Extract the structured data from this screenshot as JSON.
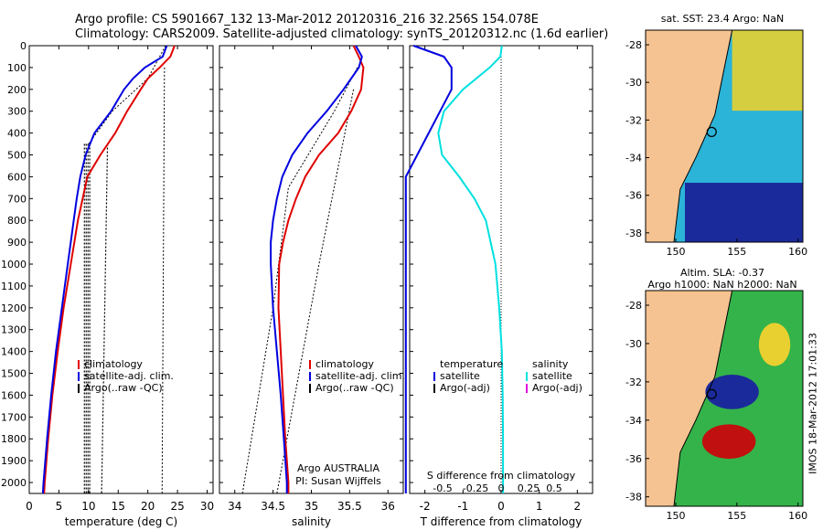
{
  "titles": {
    "line1": "Argo profile: CS 5901667_132 13-Mar-2012 20120316_216 32.256S 154.078E",
    "line2": "Climatology: CARS2009. Satellite-adjusted climatology: synTS_20120312.nc (1.6d earlier)"
  },
  "side_label": "IMOS 18-Mar-2012 17:01:33",
  "maps": {
    "sst_title": "sat. SST: 23.4  Argo: NaN",
    "sla_title1": "Altim. SLA: -0.37",
    "sla_title2": "Argo h1000: NaN h2000: NaN",
    "lat_ticks": [
      "-28",
      "-30",
      "-32",
      "-34",
      "-36",
      "-38"
    ],
    "lon_ticks": [
      "150",
      "155",
      "160"
    ],
    "colors": {
      "land": "#f5c391",
      "sea_dark": "#1b2a9a",
      "sea_mid": "#2bb3d8",
      "warm": "#e8d030",
      "hot": "#c01010"
    }
  },
  "depth_ticks": [
    "0",
    "100",
    "200",
    "300",
    "400",
    "500",
    "600",
    "700",
    "800",
    "900",
    "1000",
    "1100",
    "1200",
    "1300",
    "1400",
    "1500",
    "1600",
    "1700",
    "1800",
    "1900",
    "2000"
  ],
  "legend_temp": {
    "items": [
      "climatology",
      "satellite-adj. clim.",
      "Argo(..raw -QC)"
    ],
    "colors": [
      "#e00000",
      "#0000e0",
      "#000000"
    ]
  },
  "legend_sal": {
    "items": [
      "climatology",
      "satellite-adj. clim.",
      "Argo(..raw -QC)"
    ],
    "colors": [
      "#e00000",
      "#0000e0",
      "#000000"
    ]
  },
  "legend_diff": {
    "temp_header": "temperature",
    "sal_header": "salinity",
    "temp_items": [
      "satellite",
      "Argo(-adj)"
    ],
    "sal_items": [
      "satellite",
      "Argo(-adj)"
    ],
    "temp_colors": [
      "#0000e0",
      "#000000"
    ],
    "sal_colors": [
      "#00e0e0",
      "#e000e0"
    ]
  },
  "argo_info": {
    "line1": "Argo AUSTRALIA",
    "line2": "PI: Susan Wijffels"
  },
  "chart_data": [
    {
      "type": "line",
      "name": "temperature",
      "xlabel": "temperature (deg C)",
      "xlim": [
        0,
        31
      ],
      "ylim": [
        2050,
        0
      ],
      "xticks": [
        "0",
        "5",
        "10",
        "15",
        "20",
        "25",
        "30"
      ],
      "depth": [
        0,
        50,
        100,
        150,
        200,
        300,
        400,
        500,
        600,
        700,
        800,
        900,
        1000,
        1200,
        1400,
        1600,
        1800,
        2000,
        2050
      ],
      "series": [
        {
          "name": "climatology",
          "values": [
            24.5,
            23.8,
            22,
            20,
            18.8,
            16.5,
            14.5,
            12,
            9.8,
            9,
            8.2,
            7.6,
            7,
            5.8,
            4.8,
            3.9,
            3.2,
            2.6,
            2.5
          ]
        },
        {
          "name": "satellite-adj. clim.",
          "values": [
            23.2,
            22.5,
            19.5,
            17.5,
            16,
            13.8,
            11,
            9.5,
            8.6,
            8,
            7.5,
            7,
            6.5,
            5.5,
            4.5,
            3.7,
            3,
            2.4,
            2.3
          ]
        }
      ]
    },
    {
      "type": "line",
      "name": "salinity",
      "xlabel": "salinity",
      "xlim": [
        33.8,
        36.2
      ],
      "ylim": [
        2050,
        0
      ],
      "xticks": [
        "34",
        "34.5",
        "35",
        "35.5",
        "36"
      ],
      "depth": [
        0,
        50,
        100,
        200,
        300,
        400,
        500,
        600,
        700,
        800,
        900,
        1000,
        1200,
        1400,
        1600,
        1800,
        2000,
        2050
      ],
      "series": [
        {
          "name": "climatology",
          "values": [
            35.55,
            35.62,
            35.68,
            35.65,
            35.52,
            35.35,
            35.1,
            34.92,
            34.8,
            34.7,
            34.63,
            34.58,
            34.57,
            34.6,
            34.63,
            34.66,
            34.7,
            34.7
          ]
        },
        {
          "name": "satellite-adj. clim.",
          "values": [
            35.58,
            35.66,
            35.62,
            35.42,
            35.2,
            34.95,
            34.75,
            34.62,
            34.55,
            34.5,
            34.47,
            34.47,
            34.5,
            34.55,
            34.6,
            34.64,
            34.68,
            34.68
          ]
        }
      ]
    },
    {
      "type": "line",
      "name": "difference",
      "xlabel": "T difference from climatology",
      "xlabel_top": "S difference from climatology",
      "xlim": [
        -2.4,
        2.4
      ],
      "ylim": [
        2050,
        0
      ],
      "xticks": [
        "-2",
        "-1",
        "0",
        "1",
        "2"
      ],
      "xticks_sal": [
        "-0.5",
        "-0.25",
        "0",
        "0.25",
        "0.5"
      ],
      "depth": [
        0,
        50,
        100,
        200,
        300,
        400,
        500,
        600,
        700,
        800,
        1000,
        1200,
        1400,
        1600,
        1800,
        2000,
        2050
      ],
      "series": [
        {
          "name": "temperature satellite",
          "values": [
            -2.3,
            -1.5,
            -1.3,
            -1.3,
            -1.6,
            -1.9,
            -2.2,
            -2.5,
            -2.5,
            -2.5,
            -2.5,
            -2.5,
            -2.5,
            -2.5,
            -2.5,
            -2.5,
            -2.5
          ]
        },
        {
          "name": "salinity satellite",
          "values": [
            0.02,
            -0.02,
            -0.3,
            -1.0,
            -1.5,
            -1.65,
            -1.55,
            -1.1,
            -0.7,
            -0.4,
            -0.15,
            -0.05,
            0.02,
            0.04,
            0.05,
            0.05,
            0.05
          ]
        }
      ]
    }
  ]
}
